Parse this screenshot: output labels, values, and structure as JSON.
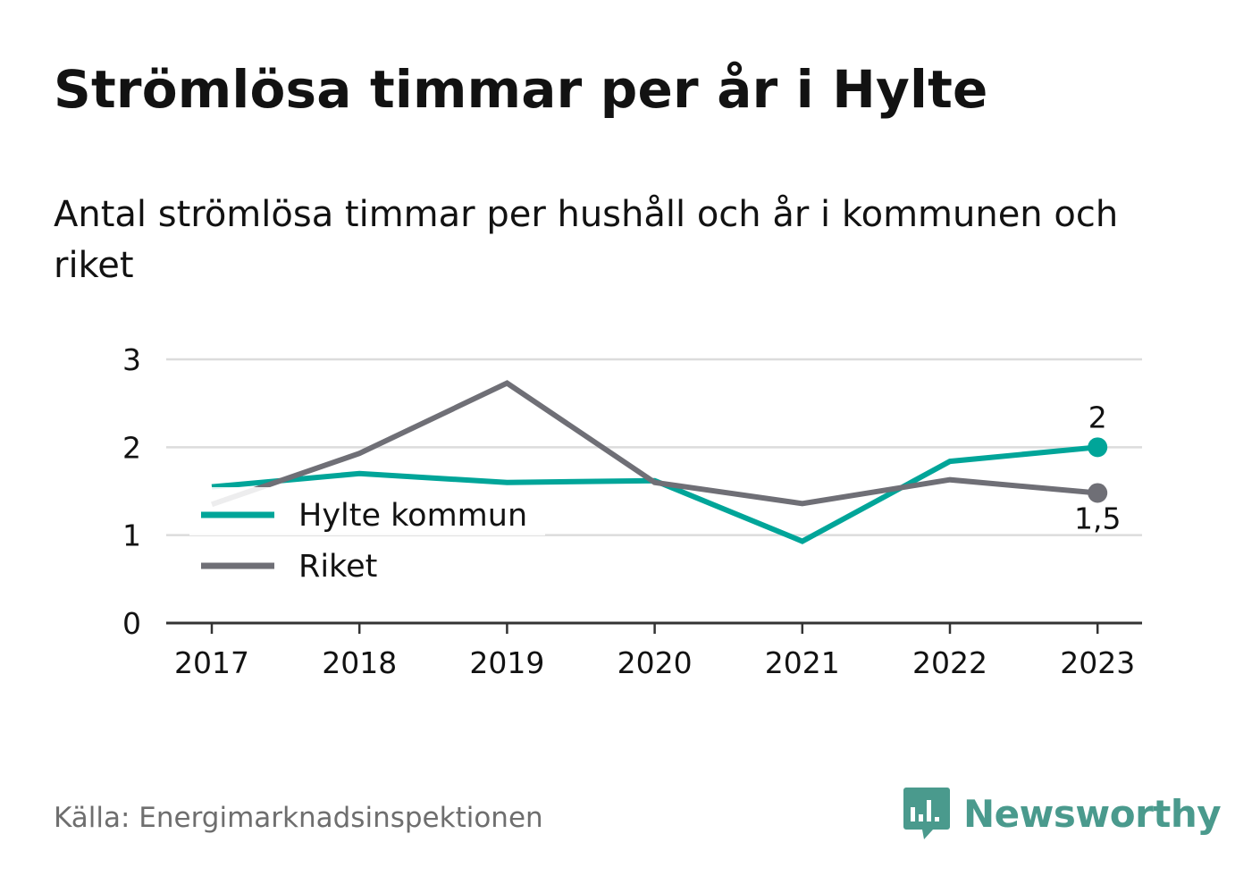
{
  "title": "Strömlösa timmar per år i Hylte",
  "subtitle": "Antal strömlösa timmar per hushåll och år i kommunen och riket",
  "source": "Källa: Energimarknadsinspektionen",
  "brand": {
    "name": "Newsworthy",
    "icon": "newsworthy-logo-icon",
    "color": "#4a9a8d"
  },
  "chart_data": {
    "type": "line",
    "x": [
      "2017",
      "2018",
      "2019",
      "2020",
      "2021",
      "2022",
      "2023"
    ],
    "ylim": [
      0,
      3
    ],
    "yticks": [
      "0",
      "1",
      "2",
      "3"
    ],
    "grid": true,
    "legend_position": "left",
    "series": [
      {
        "name": "Hylte kommun",
        "color": "#00a599",
        "values": [
          1.55,
          1.7,
          1.6,
          1.62,
          0.93,
          1.84,
          2.0
        ],
        "end_label": "2"
      },
      {
        "name": "Riket",
        "color": "#6f6f76",
        "values": [
          1.35,
          1.93,
          2.73,
          1.6,
          1.36,
          1.63,
          1.48
        ],
        "end_label": "1,5"
      }
    ]
  }
}
